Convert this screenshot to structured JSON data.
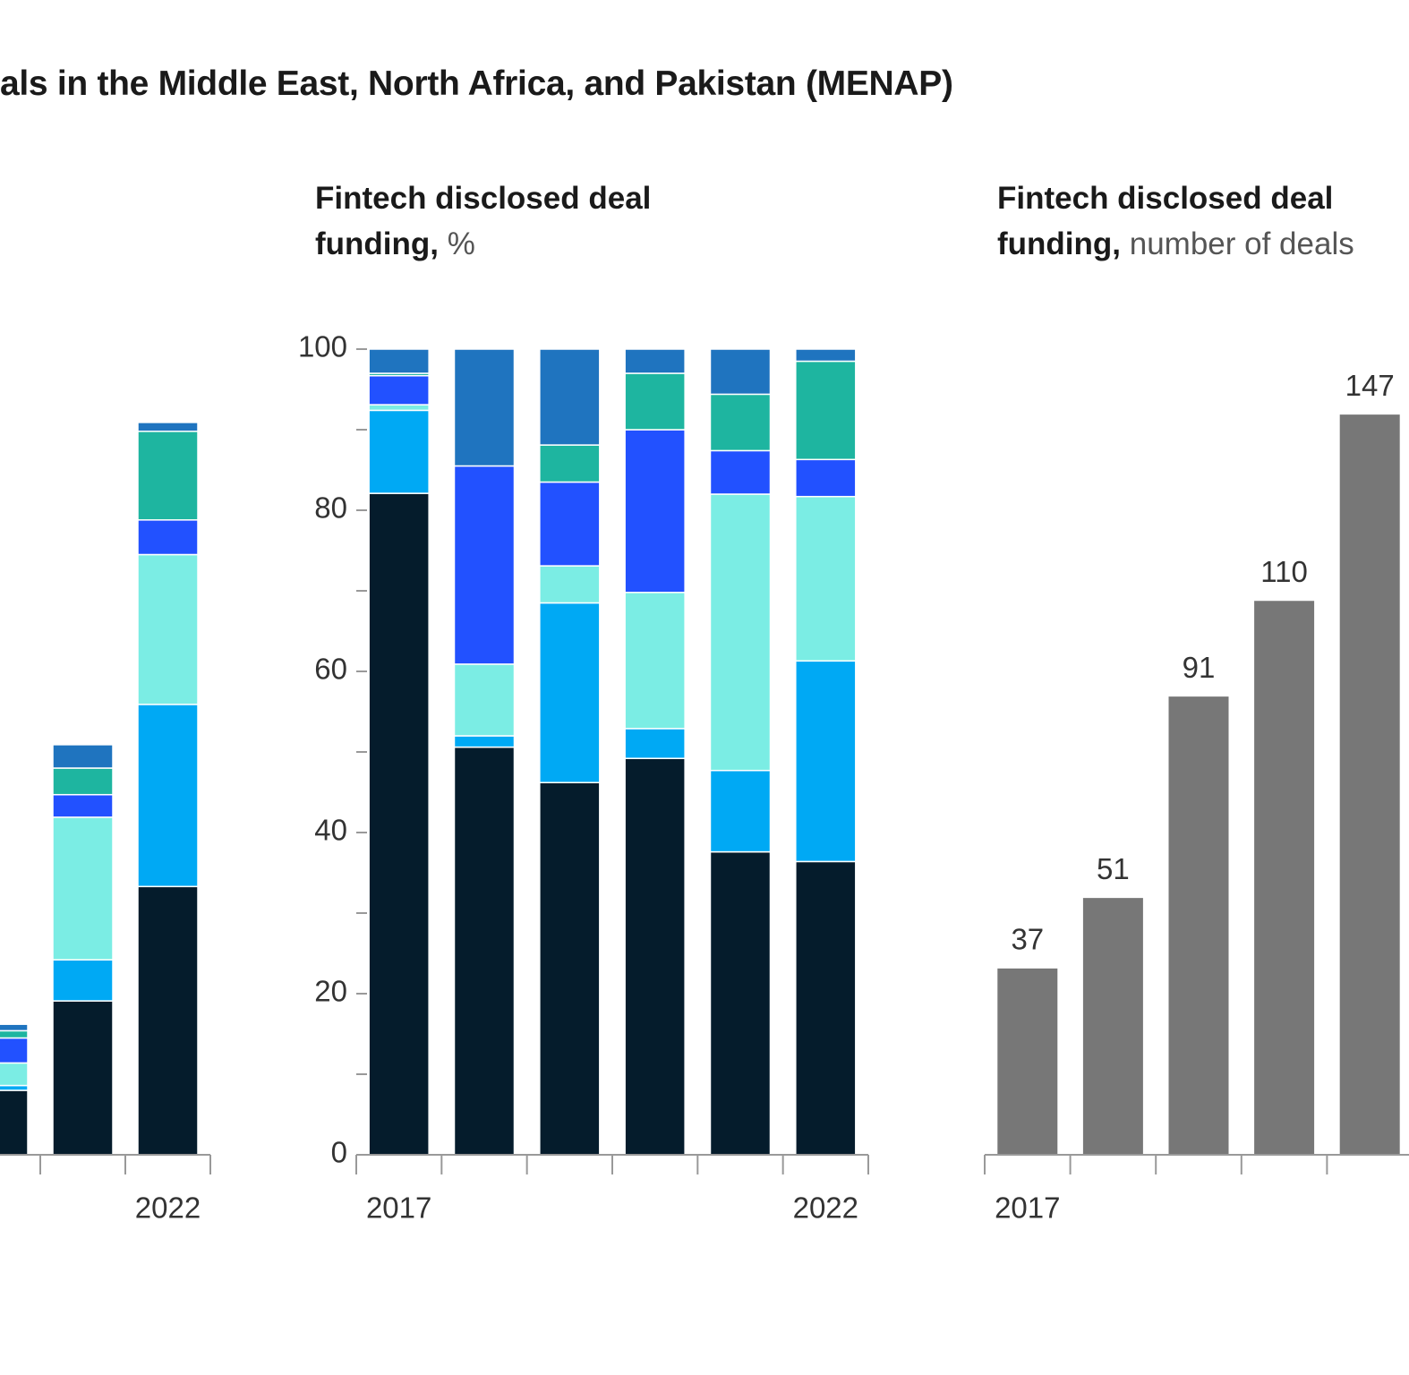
{
  "header": {
    "subtitle": "als in the Middle East, North Africa, and Pakistan (MENAP)"
  },
  "chart_data": [
    {
      "type": "stacked_bar",
      "categories": [
        null,
        null,
        "2022"
      ],
      "ylim": [
        0,
        100
      ],
      "series": [
        {
          "color": "#051c2c",
          "values": [
            8.0,
            19.1,
            33.3
          ]
        },
        {
          "color": "#00a9f4",
          "values": [
            0.6,
            5.1,
            22.6
          ]
        },
        {
          "color": "#7bede4",
          "values": [
            2.8,
            17.7,
            18.6
          ]
        },
        {
          "color": "#2251ff",
          "values": [
            3.1,
            2.8,
            4.3
          ]
        },
        {
          "color": "#1eb5a0",
          "values": [
            0.9,
            3.3,
            11.0
          ]
        },
        {
          "color": "#1f74bf",
          "values": [
            0.8,
            2.9,
            1.1
          ]
        }
      ]
    },
    {
      "type": "stacked_bar",
      "title": "Fintech disclosed deal funding,",
      "title_unit": "%",
      "categories": [
        "2017",
        null,
        null,
        null,
        null,
        "2022"
      ],
      "ylim": [
        0,
        100
      ],
      "yticks": [
        0,
        20,
        40,
        60,
        80,
        100
      ],
      "yminorticks": [
        10,
        30,
        50,
        70,
        90
      ],
      "series": [
        {
          "color": "#051c2c",
          "values": [
            82.1,
            50.6,
            46.2,
            49.2,
            37.6,
            36.4
          ]
        },
        {
          "color": "#00a9f4",
          "values": [
            10.3,
            1.4,
            22.3,
            3.7,
            10.1,
            24.9
          ]
        },
        {
          "color": "#7bede4",
          "values": [
            0.7,
            8.9,
            4.6,
            16.9,
            34.3,
            20.4
          ]
        },
        {
          "color": "#2251ff",
          "values": [
            3.6,
            24.6,
            10.4,
            20.2,
            5.4,
            4.6
          ]
        },
        {
          "color": "#1eb5a0",
          "values": [
            0.3,
            0,
            4.6,
            7.0,
            7.0,
            12.2
          ]
        },
        {
          "color": "#1f74bf",
          "values": [
            3.0,
            14.5,
            11.9,
            3.0,
            5.6,
            1.5
          ]
        }
      ]
    },
    {
      "type": "bar",
      "title": "Fintech disclosed deal funding,",
      "title_unit": "number of deals",
      "categories": [
        "2017",
        null,
        null,
        null,
        null
      ],
      "ylim": [
        0,
        160
      ],
      "color": "#777777",
      "values": [
        37,
        51,
        91,
        110,
        147
      ]
    }
  ]
}
